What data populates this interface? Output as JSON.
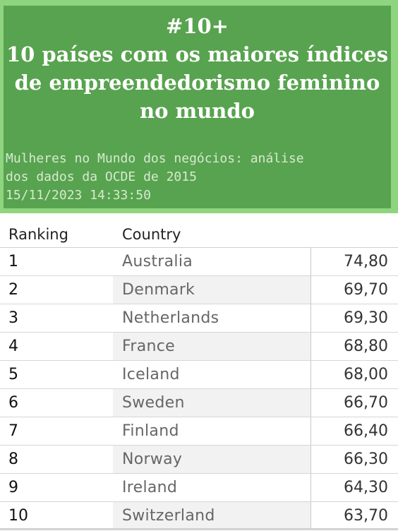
{
  "header": {
    "title_lines": [
      "#10+",
      "10 países com os maiores índices",
      "de empreendedorismo feminino",
      "no mundo"
    ],
    "subtitle_lines": [
      "Mulheres no Mundo dos negócios: análise",
      "dos dados da OCDE de 2015",
      "15/11/2023 14:33:50"
    ],
    "colors": {
      "outer_frame": "#8fd47e",
      "panel": "#58a34f",
      "title_text": "#ffffff",
      "subtitle_text": "#d6ead0"
    }
  },
  "chart_data": {
    "type": "table",
    "columns": [
      "Ranking",
      "Country",
      ""
    ],
    "rows": [
      {
        "rank": "1",
        "country": "Australia",
        "value": "74,80"
      },
      {
        "rank": "2",
        "country": "Denmark",
        "value": "69,70"
      },
      {
        "rank": "3",
        "country": "Netherlands",
        "value": "69,30"
      },
      {
        "rank": "4",
        "country": "France",
        "value": "68,80"
      },
      {
        "rank": "5",
        "country": "Iceland",
        "value": "68,00"
      },
      {
        "rank": "6",
        "country": "Sweden",
        "value": "66,70"
      },
      {
        "rank": "7",
        "country": "Finland",
        "value": "66,40"
      },
      {
        "rank": "8",
        "country": "Norway",
        "value": "66,30"
      },
      {
        "rank": "9",
        "country": "Ireland",
        "value": "64,30"
      },
      {
        "rank": "10",
        "country": "Switzerland",
        "value": "63,70"
      }
    ]
  }
}
